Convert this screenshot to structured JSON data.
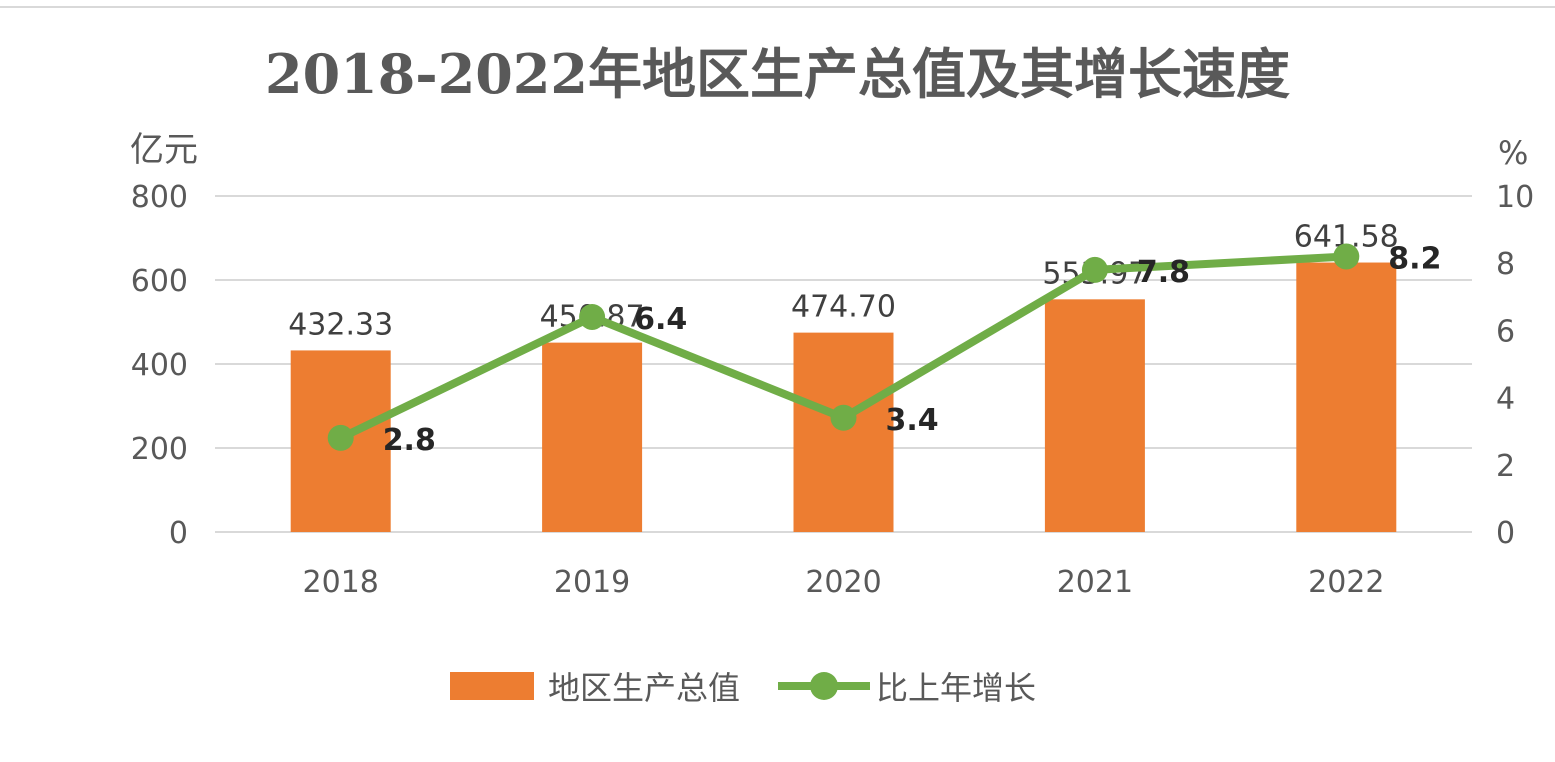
{
  "chart_data": {
    "type": "bar",
    "title": "2018-2022年地区生产总值及其增长速度",
    "categories": [
      "2018",
      "2019",
      "2020",
      "2021",
      "2022"
    ],
    "y_left": {
      "unit": "亿元",
      "ylim": [
        0,
        800
      ],
      "ticks": [
        "0",
        "200",
        "400",
        "600",
        "800"
      ]
    },
    "y_right": {
      "unit": "%",
      "ylim": [
        0,
        10
      ],
      "ticks": [
        "0",
        "2",
        "4",
        "6",
        "8",
        "10"
      ]
    },
    "series": [
      {
        "name": "地区生产总值",
        "type": "bar",
        "axis": "left",
        "values": [
          432.33,
          450.87,
          474.7,
          553.97,
          641.58
        ],
        "labels": [
          "432.33",
          "450.87",
          "474.70",
          "553.97",
          "641.58"
        ],
        "color": "#ED7D31"
      },
      {
        "name": "比上年增长",
        "type": "line",
        "axis": "right",
        "values": [
          2.8,
          6.4,
          3.4,
          7.8,
          8.2
        ],
        "labels": [
          "2.8",
          "6.4",
          "3.4",
          "7.8",
          "8.2"
        ],
        "color": "#70AD47"
      }
    ],
    "grid": true,
    "legend": "bottom"
  }
}
